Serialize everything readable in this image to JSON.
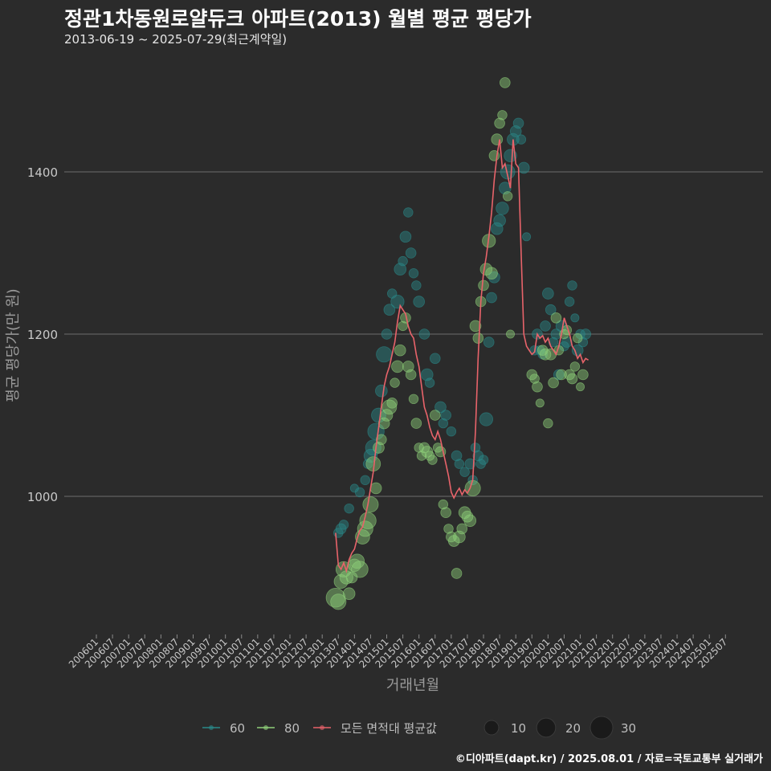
{
  "title": "정관1차동원로얄듀크 아파트(2013) 월별 평균 평당가",
  "subtitle": "2013-06-19 ~ 2025-07-29(최근계약일)",
  "footer": "©디아파트(dapt.kr) / 2025.08.01 / 자료=국토교통부 실거래가",
  "colors": {
    "background": "#2b2b2b",
    "grid": "#6e6e6e",
    "series_60": "#2a8a8a",
    "series_80": "#8fd07a",
    "avg_line": "#e8636a"
  },
  "chart_data": {
    "type": "scatter",
    "title": "정관1차동원로얄듀크 아파트(2013) 월별 평균 평당가",
    "xlabel": "거래년월",
    "ylabel": "평균 평당가(만 원)",
    "ylim": [
      780,
      1540
    ],
    "yticks": [
      1000,
      1200,
      1400
    ],
    "x_tick_labels": [
      "200601",
      "200607",
      "200701",
      "200707",
      "200801",
      "200807",
      "200901",
      "200907",
      "201001",
      "201007",
      "201101",
      "201107",
      "201201",
      "201207",
      "201301",
      "201307",
      "201401",
      "201407",
      "201501",
      "201507",
      "201601",
      "201607",
      "201701",
      "201707",
      "201801",
      "201807",
      "201901",
      "201907",
      "202001",
      "202007",
      "202101",
      "202107",
      "202201",
      "202207",
      "202301",
      "202307",
      "202401",
      "202407",
      "202501",
      "202507"
    ],
    "x_range_months": [
      0,
      236
    ],
    "grid": true,
    "legend": {
      "position": "bottom",
      "series_items": [
        {
          "label": "60",
          "color": "#2a8a8a"
        },
        {
          "label": "80",
          "color": "#8fd07a"
        },
        {
          "label": "모든 면적대 평균값",
          "color": "#e8636a"
        }
      ],
      "size_items": [
        {
          "label": "10",
          "count": 10
        },
        {
          "label": "20",
          "count": 20
        },
        {
          "label": "30",
          "count": 30
        }
      ]
    },
    "series": [
      {
        "name": "60",
        "color": "#2a8a8a",
        "points": [
          [
            90,
            955,
            3
          ],
          [
            91,
            960,
            4
          ],
          [
            92,
            965,
            3
          ],
          [
            94,
            985,
            3
          ],
          [
            96,
            1010,
            2
          ],
          [
            98,
            1005,
            3
          ],
          [
            100,
            1020,
            3
          ],
          [
            101,
            1040,
            3
          ],
          [
            102,
            1050,
            8
          ],
          [
            103,
            1060,
            12
          ],
          [
            104,
            1080,
            14
          ],
          [
            105,
            1100,
            10
          ],
          [
            106,
            1130,
            6
          ],
          [
            107,
            1175,
            12
          ],
          [
            108,
            1200,
            4
          ],
          [
            109,
            1230,
            5
          ],
          [
            110,
            1250,
            3
          ],
          [
            112,
            1240,
            8
          ],
          [
            113,
            1280,
            6
          ],
          [
            114,
            1290,
            3
          ],
          [
            115,
            1320,
            5
          ],
          [
            116,
            1350,
            3
          ],
          [
            117,
            1300,
            4
          ],
          [
            118,
            1275,
            3
          ],
          [
            119,
            1260,
            3
          ],
          [
            120,
            1240,
            5
          ],
          [
            122,
            1200,
            4
          ],
          [
            123,
            1150,
            6
          ],
          [
            124,
            1140,
            3
          ],
          [
            126,
            1170,
            4
          ],
          [
            128,
            1110,
            5
          ],
          [
            129,
            1090,
            3
          ],
          [
            130,
            1100,
            4
          ],
          [
            132,
            1080,
            3
          ],
          [
            134,
            1050,
            4
          ],
          [
            135,
            1040,
            3
          ],
          [
            137,
            1030,
            3
          ],
          [
            139,
            1040,
            4
          ],
          [
            140,
            1020,
            3
          ],
          [
            141,
            1060,
            3
          ],
          [
            142,
            1050,
            4
          ],
          [
            143,
            1040,
            3
          ],
          [
            144,
            1045,
            3
          ],
          [
            145,
            1095,
            8
          ],
          [
            146,
            1190,
            4
          ],
          [
            147,
            1245,
            4
          ],
          [
            148,
            1270,
            5
          ],
          [
            149,
            1330,
            6
          ],
          [
            150,
            1340,
            6
          ],
          [
            151,
            1355,
            7
          ],
          [
            152,
            1380,
            6
          ],
          [
            153,
            1400,
            10
          ],
          [
            154,
            1420,
            7
          ],
          [
            155,
            1440,
            6
          ],
          [
            156,
            1450,
            5
          ],
          [
            157,
            1460,
            4
          ],
          [
            158,
            1440,
            3
          ],
          [
            159,
            1405,
            5
          ],
          [
            160,
            1320,
            2
          ],
          [
            163,
            1180,
            3
          ],
          [
            164,
            1200,
            4
          ],
          [
            165,
            1180,
            3
          ],
          [
            166,
            1175,
            3
          ],
          [
            167,
            1210,
            4
          ],
          [
            168,
            1250,
            5
          ],
          [
            169,
            1230,
            4
          ],
          [
            170,
            1190,
            3
          ],
          [
            171,
            1200,
            4
          ],
          [
            172,
            1150,
            4
          ],
          [
            173,
            1210,
            5
          ],
          [
            174,
            1185,
            3
          ],
          [
            175,
            1190,
            4
          ],
          [
            176,
            1240,
            3
          ],
          [
            177,
            1260,
            3
          ],
          [
            178,
            1220,
            2
          ],
          [
            179,
            1180,
            5
          ],
          [
            180,
            1200,
            3
          ],
          [
            181,
            1190,
            3
          ],
          [
            182,
            1200,
            4
          ]
        ]
      },
      {
        "name": "80",
        "color": "#8fd07a",
        "points": [
          [
            89,
            875,
            20
          ],
          [
            90,
            870,
            12
          ],
          [
            91,
            895,
            9
          ],
          [
            92,
            910,
            12
          ],
          [
            93,
            900,
            8
          ],
          [
            94,
            880,
            6
          ],
          [
            95,
            900,
            5
          ],
          [
            96,
            915,
            7
          ],
          [
            97,
            920,
            10
          ],
          [
            98,
            910,
            14
          ],
          [
            99,
            950,
            10
          ],
          [
            100,
            960,
            12
          ],
          [
            101,
            970,
            14
          ],
          [
            102,
            990,
            12
          ],
          [
            103,
            1040,
            10
          ],
          [
            104,
            1010,
            5
          ],
          [
            105,
            1060,
            5
          ],
          [
            106,
            1070,
            4
          ],
          [
            107,
            1090,
            5
          ],
          [
            108,
            1100,
            6
          ],
          [
            109,
            1110,
            10
          ],
          [
            110,
            1115,
            4
          ],
          [
            111,
            1140,
            3
          ],
          [
            112,
            1160,
            6
          ],
          [
            113,
            1180,
            5
          ],
          [
            114,
            1210,
            3
          ],
          [
            115,
            1220,
            4
          ],
          [
            116,
            1160,
            5
          ],
          [
            117,
            1150,
            4
          ],
          [
            118,
            1120,
            3
          ],
          [
            119,
            1090,
            4
          ],
          [
            120,
            1060,
            3
          ],
          [
            121,
            1050,
            3
          ],
          [
            122,
            1060,
            4
          ],
          [
            123,
            1055,
            5
          ],
          [
            124,
            1050,
            3
          ],
          [
            125,
            1045,
            3
          ],
          [
            126,
            1100,
            4
          ],
          [
            127,
            1060,
            3
          ],
          [
            128,
            1055,
            4
          ],
          [
            129,
            990,
            3
          ],
          [
            130,
            980,
            4
          ],
          [
            131,
            960,
            3
          ],
          [
            132,
            950,
            4
          ],
          [
            133,
            945,
            5
          ],
          [
            134,
            905,
            4
          ],
          [
            135,
            950,
            6
          ],
          [
            136,
            960,
            4
          ],
          [
            137,
            980,
            6
          ],
          [
            138,
            975,
            5
          ],
          [
            139,
            970,
            6
          ],
          [
            140,
            1010,
            12
          ],
          [
            141,
            1210,
            5
          ],
          [
            142,
            1195,
            4
          ],
          [
            143,
            1240,
            4
          ],
          [
            144,
            1260,
            4
          ],
          [
            145,
            1280,
            6
          ],
          [
            146,
            1315,
            8
          ],
          [
            147,
            1275,
            6
          ],
          [
            148,
            1420,
            4
          ],
          [
            149,
            1440,
            5
          ],
          [
            150,
            1460,
            4
          ],
          [
            151,
            1470,
            3
          ],
          [
            152,
            1510,
            4
          ],
          [
            153,
            1370,
            3
          ],
          [
            154,
            1200,
            2
          ],
          [
            162,
            1150,
            4
          ],
          [
            163,
            1145,
            3
          ],
          [
            164,
            1135,
            4
          ],
          [
            165,
            1115,
            2
          ],
          [
            166,
            1180,
            4
          ],
          [
            167,
            1175,
            5
          ],
          [
            168,
            1090,
            3
          ],
          [
            169,
            1175,
            5
          ],
          [
            170,
            1140,
            4
          ],
          [
            171,
            1220,
            4
          ],
          [
            172,
            1180,
            3
          ],
          [
            173,
            1150,
            4
          ],
          [
            174,
            1200,
            3
          ],
          [
            175,
            1205,
            3
          ],
          [
            176,
            1150,
            4
          ],
          [
            177,
            1145,
            4
          ],
          [
            178,
            1160,
            3
          ],
          [
            179,
            1195,
            3
          ],
          [
            180,
            1135,
            2
          ],
          [
            181,
            1150,
            4
          ]
        ]
      }
    ],
    "average_line": {
      "name": "모든 면적대 평균값",
      "color": "#e8636a",
      "points": [
        [
          89,
          955
        ],
        [
          90,
          915
        ],
        [
          91,
          910
        ],
        [
          92,
          918
        ],
        [
          93,
          908
        ],
        [
          94,
          922
        ],
        [
          95,
          930
        ],
        [
          96,
          935
        ],
        [
          97,
          948
        ],
        [
          98,
          958
        ],
        [
          99,
          962
        ],
        [
          100,
          975
        ],
        [
          101,
          990
        ],
        [
          102,
          1010
        ],
        [
          103,
          1030
        ],
        [
          104,
          1060
        ],
        [
          105,
          1085
        ],
        [
          106,
          1110
        ],
        [
          107,
          1135
        ],
        [
          108,
          1150
        ],
        [
          109,
          1160
        ],
        [
          110,
          1175
        ],
        [
          111,
          1190
        ],
        [
          112,
          1215
        ],
        [
          113,
          1235
        ],
        [
          114,
          1230
        ],
        [
          115,
          1225
        ],
        [
          116,
          1210
        ],
        [
          117,
          1200
        ],
        [
          118,
          1195
        ],
        [
          119,
          1175
        ],
        [
          120,
          1160
        ],
        [
          121,
          1135
        ],
        [
          122,
          1110
        ],
        [
          123,
          1100
        ],
        [
          124,
          1085
        ],
        [
          125,
          1075
        ],
        [
          126,
          1070
        ],
        [
          127,
          1080
        ],
        [
          128,
          1070
        ],
        [
          129,
          1055
        ],
        [
          130,
          1040
        ],
        [
          131,
          1025
        ],
        [
          132,
          1005
        ],
        [
          133,
          998
        ],
        [
          134,
          1005
        ],
        [
          135,
          1010
        ],
        [
          136,
          1002
        ],
        [
          137,
          1008
        ],
        [
          138,
          1004
        ],
        [
          139,
          1010
        ],
        [
          140,
          1020
        ],
        [
          141,
          1080
        ],
        [
          142,
          1170
        ],
        [
          143,
          1240
        ],
        [
          144,
          1275
        ],
        [
          145,
          1295
        ],
        [
          146,
          1320
        ],
        [
          147,
          1350
        ],
        [
          148,
          1390
        ],
        [
          149,
          1420
        ],
        [
          150,
          1440
        ],
        [
          151,
          1405
        ],
        [
          152,
          1410
        ],
        [
          153,
          1395
        ],
        [
          154,
          1380
        ],
        [
          155,
          1440
        ],
        [
          156,
          1410
        ],
        [
          157,
          1405
        ],
        [
          158,
          1300
        ],
        [
          159,
          1200
        ],
        [
          160,
          1185
        ],
        [
          161,
          1180
        ],
        [
          162,
          1175
        ],
        [
          163,
          1178
        ],
        [
          164,
          1200
        ],
        [
          165,
          1195
        ],
        [
          166,
          1198
        ],
        [
          167,
          1190
        ],
        [
          168,
          1195
        ],
        [
          169,
          1185
        ],
        [
          170,
          1180
        ],
        [
          171,
          1175
        ],
        [
          172,
          1185
        ],
        [
          173,
          1200
        ],
        [
          174,
          1220
        ],
        [
          175,
          1210
        ],
        [
          176,
          1200
        ],
        [
          177,
          1185
        ],
        [
          178,
          1180
        ],
        [
          179,
          1170
        ],
        [
          180,
          1175
        ],
        [
          181,
          1165
        ],
        [
          182,
          1170
        ],
        [
          183,
          1168
        ]
      ]
    }
  }
}
